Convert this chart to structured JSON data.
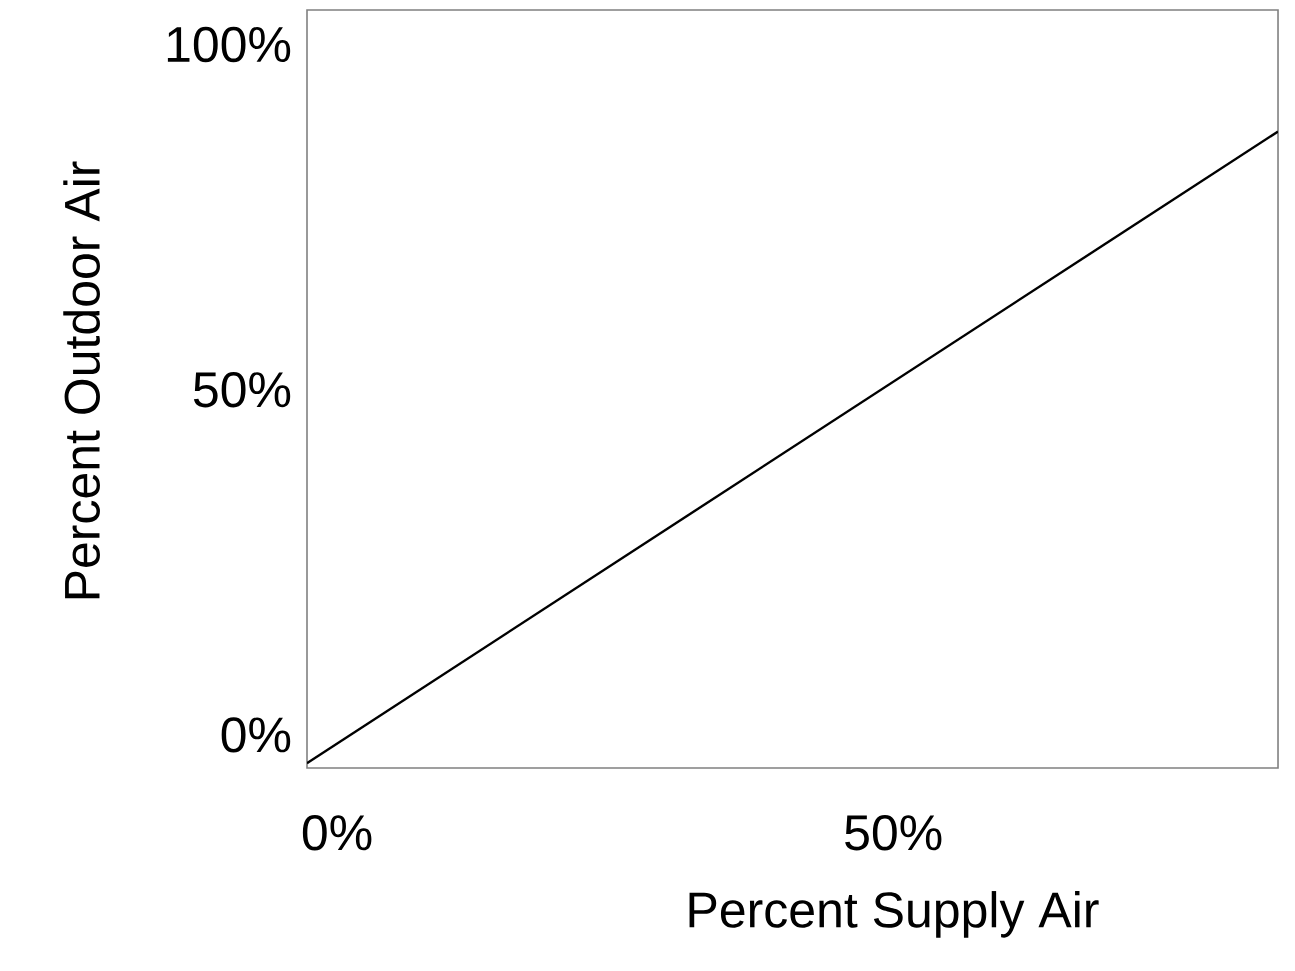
{
  "chart_data": {
    "type": "line",
    "xlabel": "Percent Supply Air",
    "ylabel": "Percent Outdoor Air",
    "x": [
      -2.7,
      84.6
    ],
    "series": [
      {
        "color": "#000000",
        "values": [
          -4.1,
          87.4
        ]
      }
    ],
    "xlim": [
      -2.7,
      84.6
    ],
    "ylim": [
      -4.8,
      105
    ],
    "xticks": [
      {
        "value": 0,
        "label": "0%"
      },
      {
        "value": 50,
        "label": "50%"
      }
    ],
    "yticks": [
      {
        "value": 0,
        "label": "0%"
      },
      {
        "value": 50,
        "label": "50%"
      },
      {
        "value": 100,
        "label": "100%"
      }
    ],
    "grid": false,
    "marker": "none",
    "line_style": "solid"
  }
}
